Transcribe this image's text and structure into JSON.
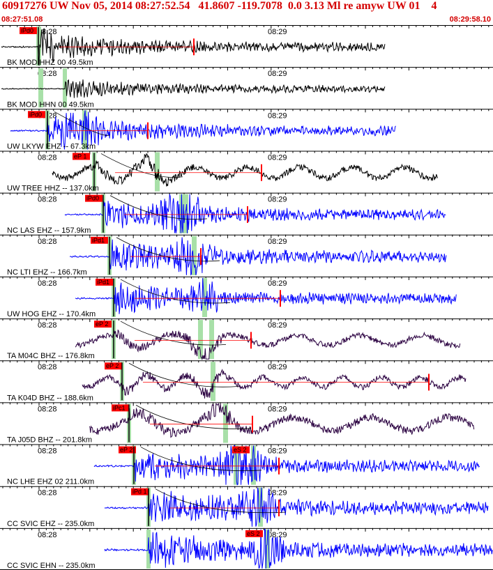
{
  "header": {
    "title": "60917276 UW Nov 05, 2014 08:27:52.54   41.8607 -119.7078  0.0 3.13 Ml re amyw UW 01    4",
    "start_time": "08:27:51.08",
    "end_time": "08:29:58.10"
  },
  "colors": {
    "header_text": "#d40000",
    "pick_box": "#ff0000",
    "pick_window": "#a8e0a8",
    "trace_black": "#000000",
    "trace_blue": "#0000ff",
    "trace_dark": "#2a0040",
    "travel_curve": "#000000"
  },
  "tick_labels": [
    "08:28",
    "08:29"
  ],
  "traces": [
    {
      "label": "BK MOD HHZ 00 49.5km",
      "color": "black",
      "pick": "iPd0",
      "pick2": ""
    },
    {
      "label": "BK MOD HHN 00 49.5km",
      "color": "black",
      "pick": "",
      "pick2": ""
    },
    {
      "label": "UW LKYW EHZ -- 67.3km",
      "color": "blue",
      "pick": "iPd0",
      "pick2": ""
    },
    {
      "label": "UW TREE HHZ -- 137.0km",
      "color": "black",
      "pick": "eP 1",
      "pick2": ""
    },
    {
      "label": "NC LAS EHZ -- 157.9km",
      "color": "blue",
      "pick": "iPd0",
      "pick2": ""
    },
    {
      "label": "NC LTI EHZ -- 166.7km",
      "color": "blue",
      "pick": "iPd1",
      "pick2": ""
    },
    {
      "label": "UW HOG EHZ -- 170.4km",
      "color": "blue",
      "pick": "iPd1",
      "pick2": ""
    },
    {
      "label": "TA M04C BHZ -- 176.8km",
      "color": "dark",
      "pick": "eP 2",
      "pick2": ""
    },
    {
      "label": "TA K04D BHZ -- 188.6km",
      "color": "dark",
      "pick": "eP 2",
      "pick2": ""
    },
    {
      "label": "TA J05D BHZ -- 201.8km",
      "color": "dark",
      "pick": "iPc1",
      "pick2": ""
    },
    {
      "label": "NC LHE EHZ 02 211.0km",
      "color": "blue",
      "pick": "eP 2",
      "pick2": "eS 2"
    },
    {
      "label": "CC SVIC EHZ -- 235.0km",
      "color": "blue",
      "pick": "iPd 1",
      "pick2": ""
    },
    {
      "label": "CC SVIC EHN -- 235.0km",
      "color": "blue",
      "pick": "",
      "pick2": "eS 2"
    }
  ]
}
